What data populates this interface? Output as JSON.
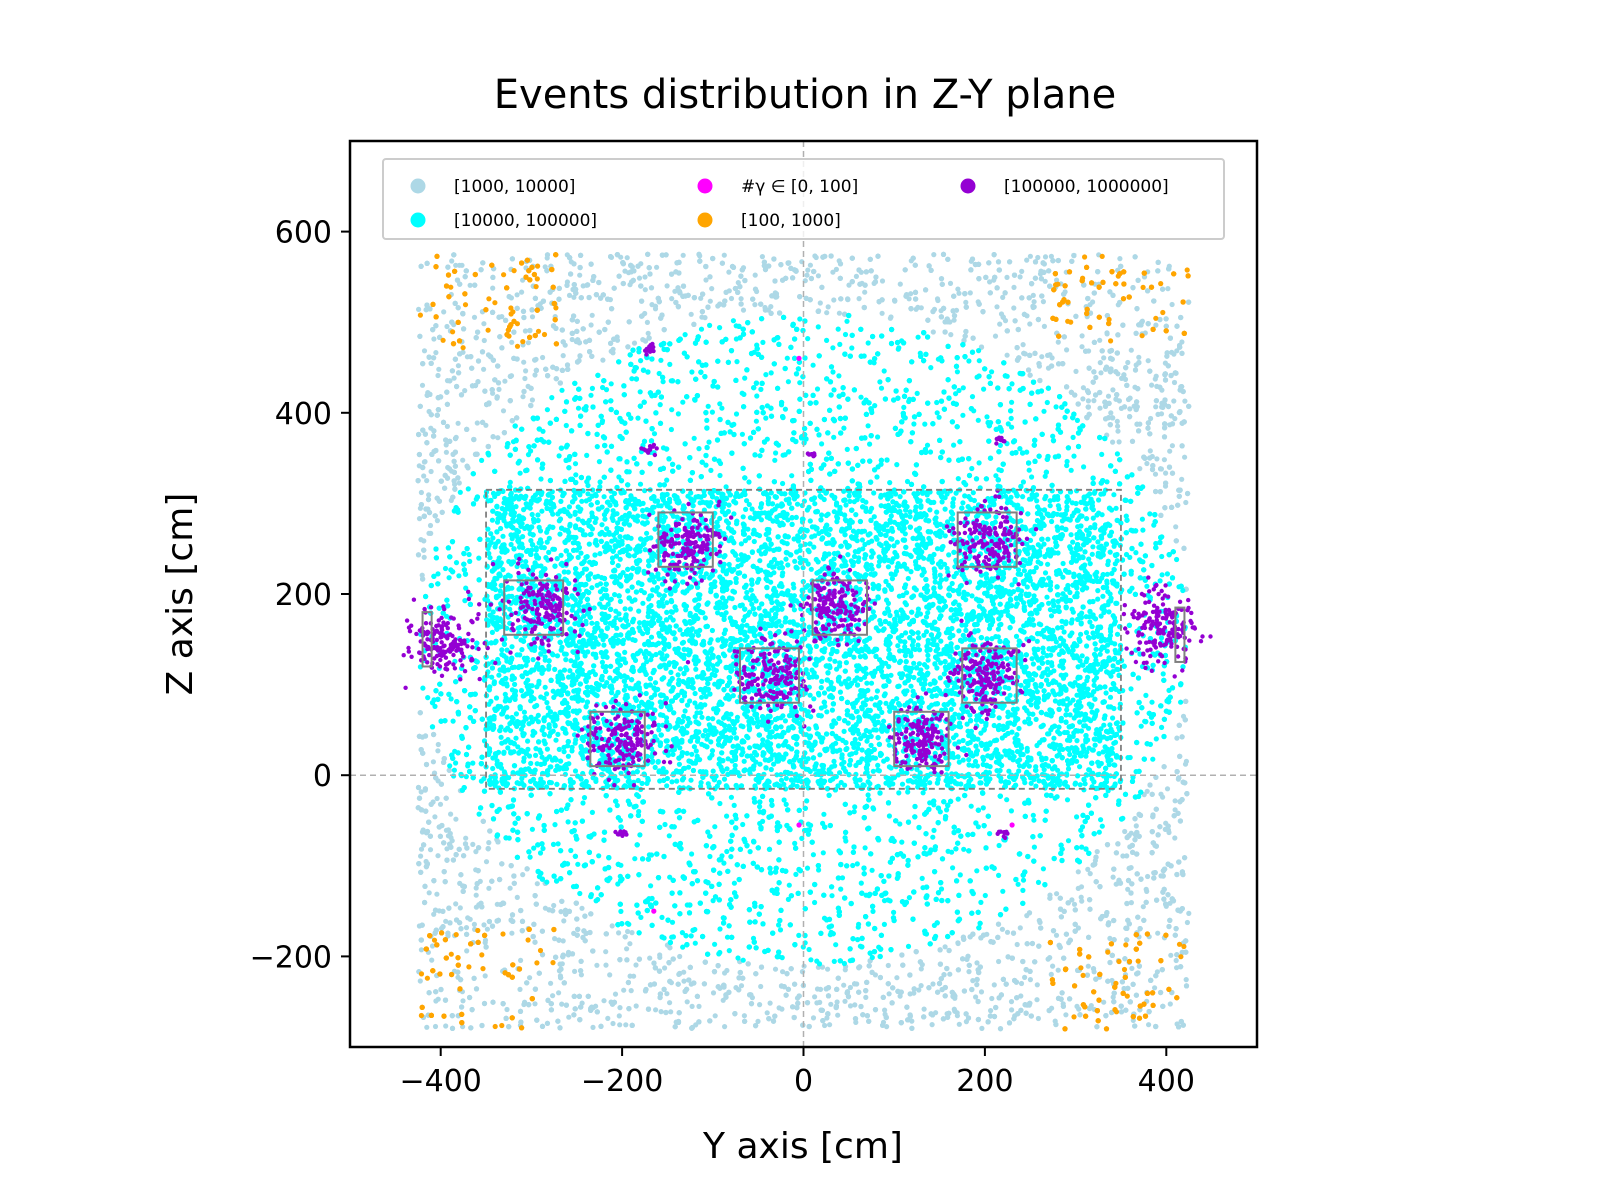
{
  "chart_data": {
    "type": "scatter",
    "title": "Events distribution in Z-Y plane",
    "xlabel": "Y axis [cm]",
    "ylabel": "Z axis [cm]",
    "xlim": [
      -500,
      500
    ],
    "ylim": [
      -300,
      700
    ],
    "xticks": [
      {
        "value": -400,
        "label": "−400"
      },
      {
        "value": -200,
        "label": "−200"
      },
      {
        "value": 0,
        "label": "0"
      },
      {
        "value": 200,
        "label": "200"
      },
      {
        "value": 400,
        "label": "400"
      }
    ],
    "yticks": [
      {
        "value": -200,
        "label": "−200"
      },
      {
        "value": 0,
        "label": "0"
      },
      {
        "value": 200,
        "label": "200"
      },
      {
        "value": 400,
        "label": "400"
      },
      {
        "value": 600,
        "label": "600"
      }
    ],
    "legend_position": "top (inside, 3 columns)",
    "series": [
      {
        "name": "[1000, 10000]",
        "color": "#add8e6",
        "region": "rectangle y:[-425,425] z:[-280,575], outside ellipse"
      },
      {
        "name": "[10000, 100000]",
        "color": "#00ffff",
        "region": "ellipse centre (0,150), semi-axes 425 x 360"
      },
      {
        "name": "#γ ∈ [0, 100]",
        "color": "#ff00ff",
        "points": [
          [
            -5,
            460
          ],
          [
            -5,
            -55
          ],
          [
            230,
            -55
          ],
          [
            -165,
            -150
          ]
        ]
      },
      {
        "name": "[100, 1000]",
        "color": "#ffa500",
        "region": "corners of the rectangle"
      },
      {
        "name": "[100000, 1000000]",
        "color": "#9400d3",
        "clusters": [
          {
            "center": [
              -395,
              150
            ],
            "size": 35
          },
          {
            "center": [
              395,
              160
            ],
            "size": 35
          },
          {
            "center": [
              -290,
              185
            ],
            "size": 35
          },
          {
            "center": [
              -130,
              255
            ],
            "size": 35
          },
          {
            "center": [
              205,
              260
            ],
            "size": 35
          },
          {
            "center": [
              35,
              185
            ],
            "size": 35
          },
          {
            "center": [
              -35,
              110
            ],
            "size": 35
          },
          {
            "center": [
              200,
              110
            ],
            "size": 35
          },
          {
            "center": [
              -200,
              40
            ],
            "size": 35
          },
          {
            "center": [
              130,
              40
            ],
            "size": 35
          },
          {
            "center": [
              -170,
              470
            ],
            "size": 6
          },
          {
            "center": [
              -170,
              360
            ],
            "size": 6
          },
          {
            "center": [
              215,
              370
            ],
            "size": 4
          },
          {
            "center": [
              -200,
              -65
            ],
            "size": 5
          },
          {
            "center": [
              220,
              -65
            ],
            "size": 5
          },
          {
            "center": [
              10,
              355
            ],
            "size": 4
          }
        ]
      }
    ],
    "legend_order": [
      "[1000, 10000]",
      "[10000, 100000]",
      "#γ ∈ [0, 100]",
      "[100, 1000]",
      "[100000, 1000000]"
    ],
    "annotations": {
      "dashed_rectangle": {
        "y": [
          -350,
          350
        ],
        "z": [
          -15,
          315
        ]
      },
      "detector_boxes": [
        {
          "y": [
            -330,
            -265
          ],
          "z": [
            155,
            215
          ]
        },
        {
          "y": [
            -160,
            -100
          ],
          "z": [
            230,
            290
          ]
        },
        {
          "y": [
            170,
            235
          ],
          "z": [
            230,
            290
          ]
        },
        {
          "y": [
            10,
            70
          ],
          "z": [
            155,
            215
          ]
        },
        {
          "y": [
            -70,
            -5
          ],
          "z": [
            80,
            140
          ]
        },
        {
          "y": [
            175,
            235
          ],
          "z": [
            80,
            140
          ]
        },
        {
          "y": [
            -235,
            -175
          ],
          "z": [
            10,
            70
          ]
        },
        {
          "y": [
            100,
            160
          ],
          "z": [
            10,
            70
          ]
        },
        {
          "y": [
            -420,
            -410
          ],
          "z": [
            120,
            180
          ]
        },
        {
          "y": [
            410,
            420
          ],
          "z": [
            125,
            185
          ]
        }
      ],
      "reference_lines": {
        "vertical_x": 0,
        "horizontal_y": 0
      }
    }
  }
}
